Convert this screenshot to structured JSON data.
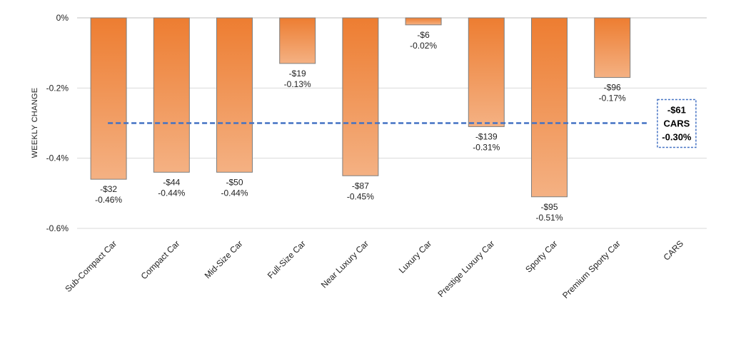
{
  "chart_data": {
    "type": "bar",
    "title": "",
    "xlabel": "",
    "ylabel": "WEEKLY CHANGE",
    "ylim": [
      -0.6,
      0
    ],
    "yticks": [
      0,
      -0.2,
      -0.4,
      -0.6
    ],
    "ytick_labels": [
      "0%",
      "-0.2%",
      "-0.4%",
      "-0.6%"
    ],
    "grid": true,
    "categories": [
      "Sub-Compact Car",
      "Compact Car",
      "Mid-Size Car",
      "Full-Size Car",
      "Near Luxury Car",
      "Luxury Car",
      "Prestige Luxury Car",
      "Sporty Car",
      "Premium Sporty Car",
      "CARS"
    ],
    "values": [
      -0.46,
      -0.44,
      -0.44,
      -0.13,
      -0.45,
      -0.02,
      -0.31,
      -0.51,
      -0.17,
      null
    ],
    "dollar_labels": [
      "-$32",
      "-$44",
      "-$50",
      "-$19",
      "-$87",
      "-$6",
      "-$139",
      "-$95",
      "-$96",
      ""
    ],
    "percent_labels": [
      "-0.46%",
      "-0.44%",
      "-0.44%",
      "-0.13%",
      "-0.45%",
      "-0.02%",
      "-0.31%",
      "-0.51%",
      "-0.17%",
      ""
    ],
    "average": {
      "value": -0.3,
      "dollar_label": "-$61",
      "name_label": "CARS",
      "percent_label": "-0.30%"
    }
  },
  "colors": {
    "bar_top": "#ed7d31",
    "bar_bottom": "#f4b183",
    "bar_border": "#7f7f7f",
    "average_line": "#4472c4",
    "grid": "#d9d9d9"
  }
}
